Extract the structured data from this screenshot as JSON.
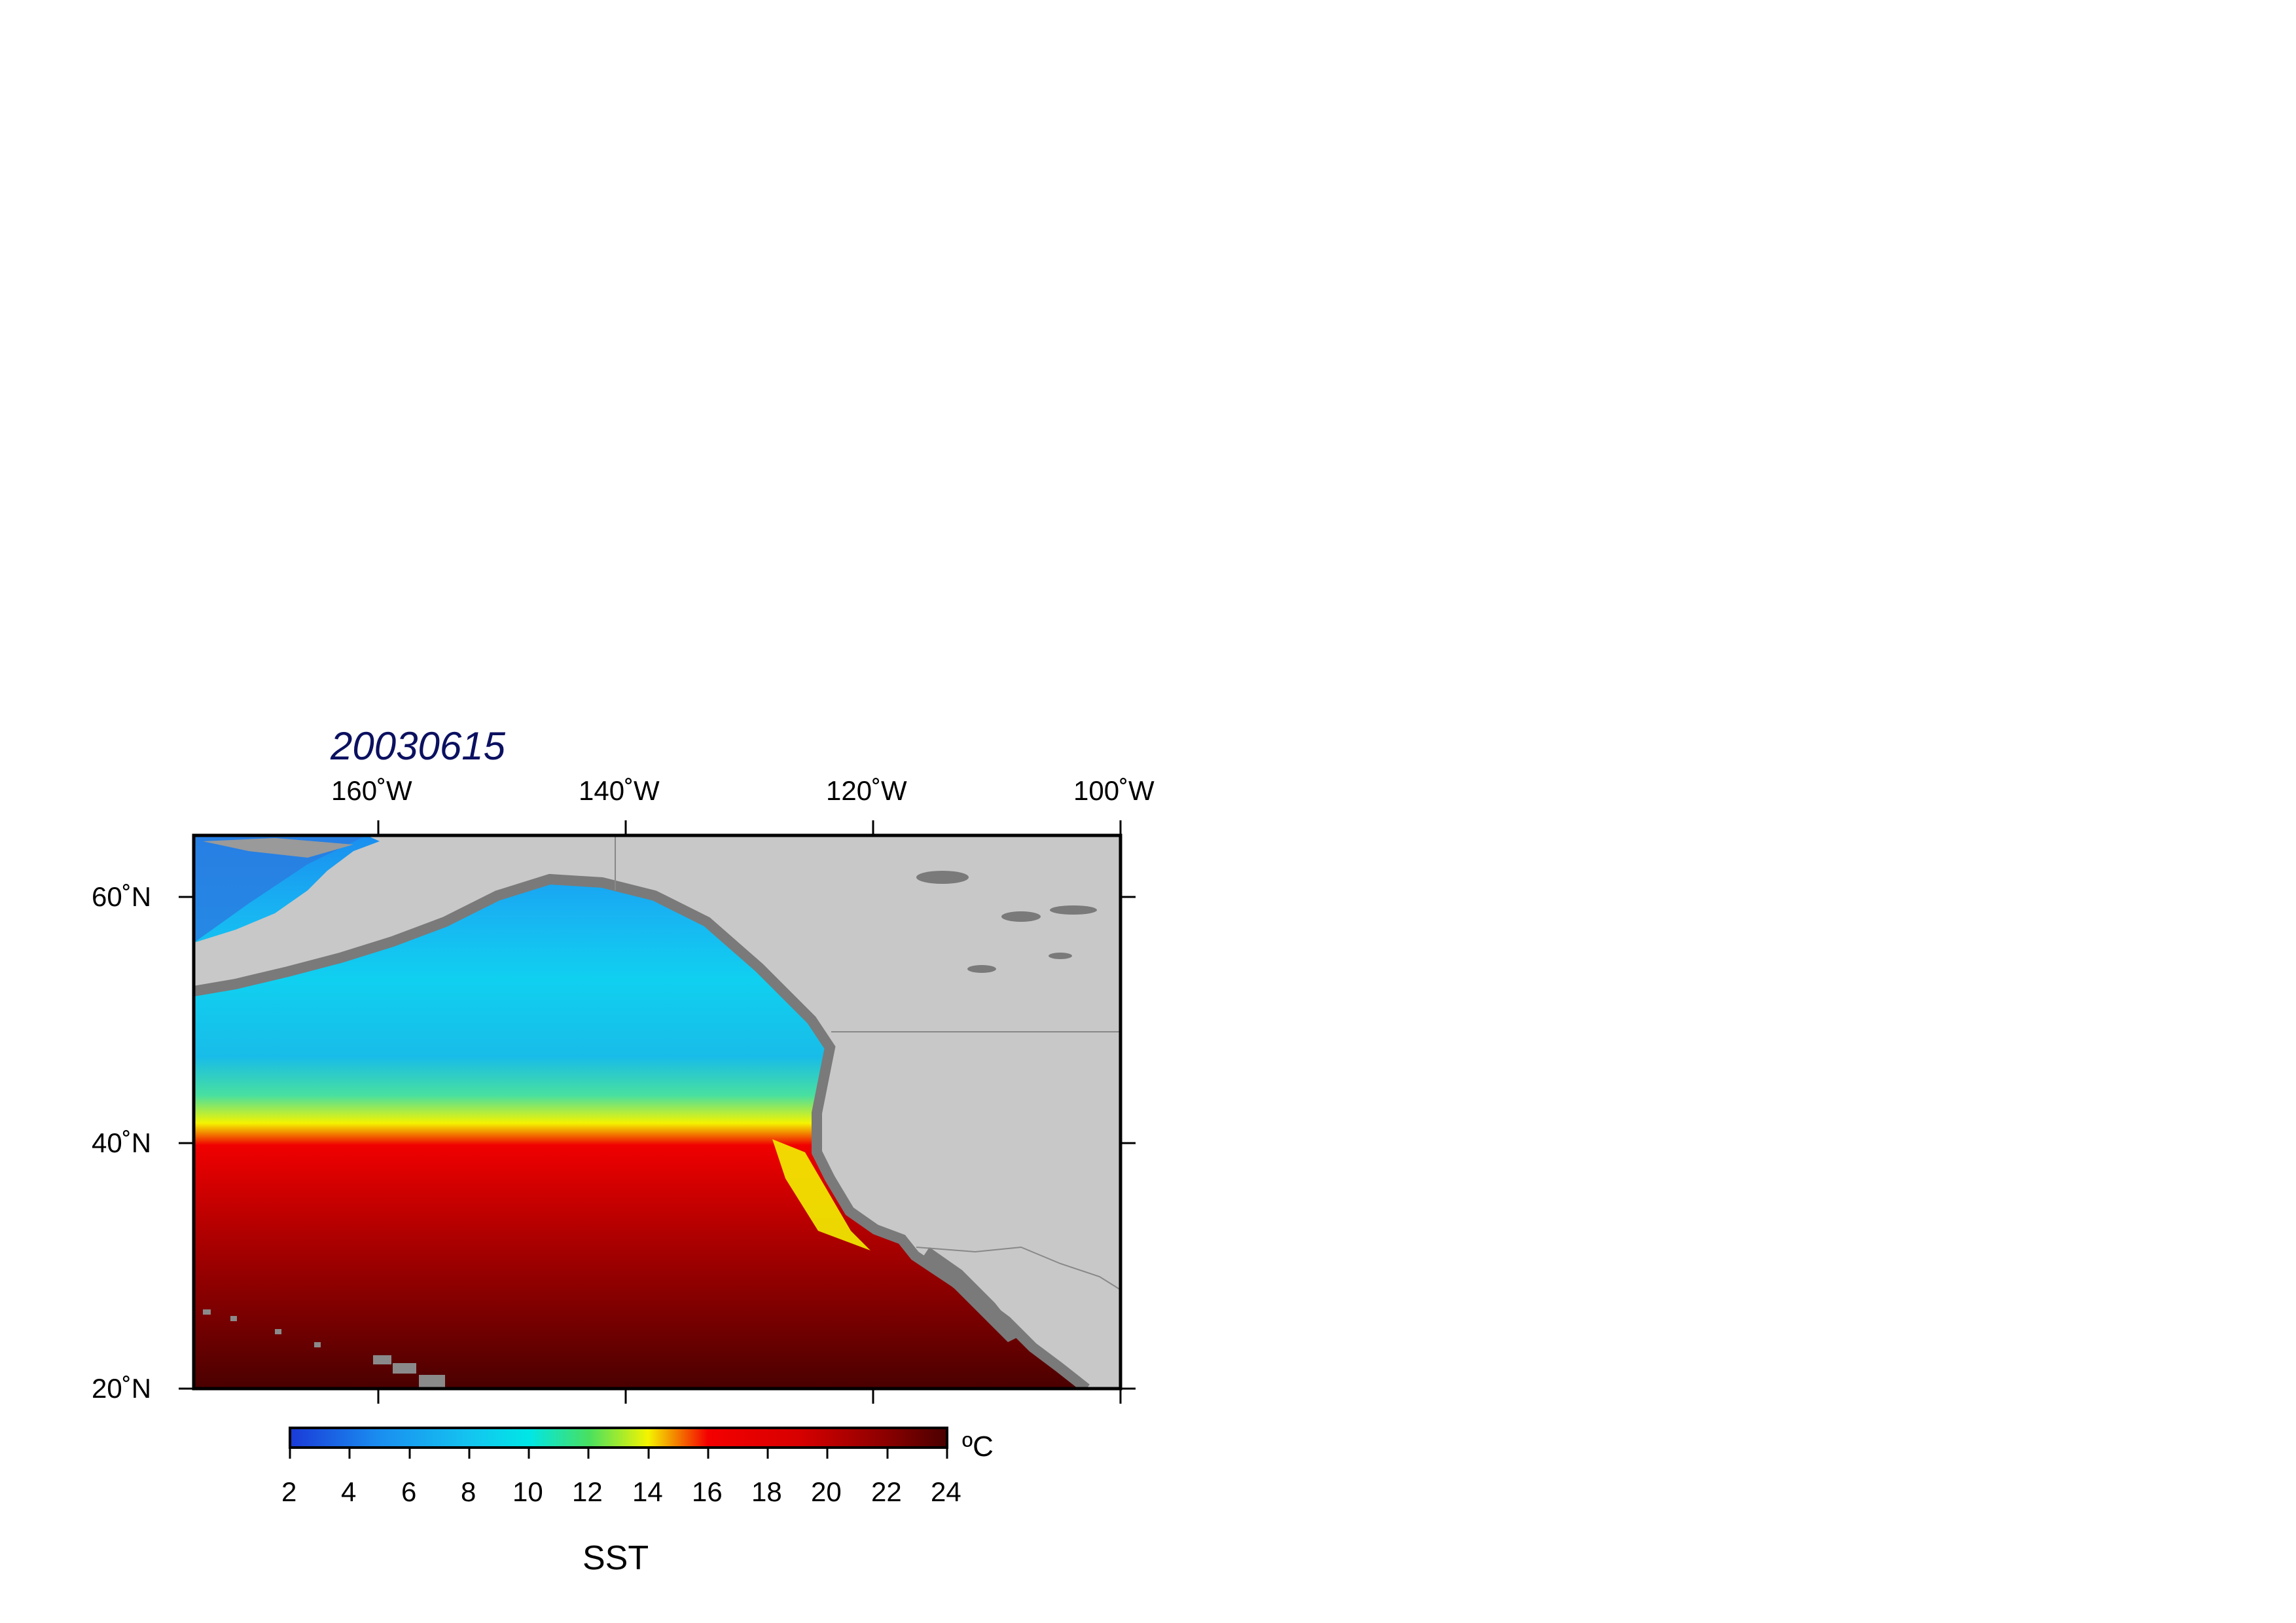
{
  "map": {
    "title": "20030615",
    "extent": {
      "lon_min": -175,
      "lon_max": -100,
      "lat_min": 20,
      "lat_max": 65
    },
    "lon_ticks": [
      {
        "value": -160,
        "label": "160˚W"
      },
      {
        "value": -140,
        "label": "140˚W"
      },
      {
        "value": -120,
        "label": "120˚W"
      },
      {
        "value": -100,
        "label": "100˚W"
      }
    ],
    "lat_ticks": [
      {
        "value": 60,
        "label": "60˚N"
      },
      {
        "value": 40,
        "label": "40˚N"
      },
      {
        "value": 20,
        "label": "20˚N"
      }
    ],
    "colors": {
      "land": "#c8c8c8",
      "no_data": "#7a7a7a",
      "frame": "#000000",
      "title": "#0b1060"
    }
  },
  "colorbar": {
    "variable": "SST",
    "unit": "ºC",
    "ticks": [
      "2",
      "4",
      "6",
      "8",
      "10",
      "12",
      "14",
      "16",
      "18",
      "20",
      "22",
      "24"
    ],
    "range": [
      2,
      24
    ],
    "stops": [
      {
        "value": 2,
        "color": "#1a3ad8"
      },
      {
        "value": 5,
        "color": "#1a8ef0"
      },
      {
        "value": 8,
        "color": "#14c4f0"
      },
      {
        "value": 10,
        "color": "#00e6e6"
      },
      {
        "value": 12,
        "color": "#48e060"
      },
      {
        "value": 14,
        "color": "#f4f400"
      },
      {
        "value": 16,
        "color": "#f40000"
      },
      {
        "value": 19,
        "color": "#d80000"
      },
      {
        "value": 22,
        "color": "#8a0000"
      },
      {
        "value": 24,
        "color": "#4a0000"
      }
    ]
  }
}
